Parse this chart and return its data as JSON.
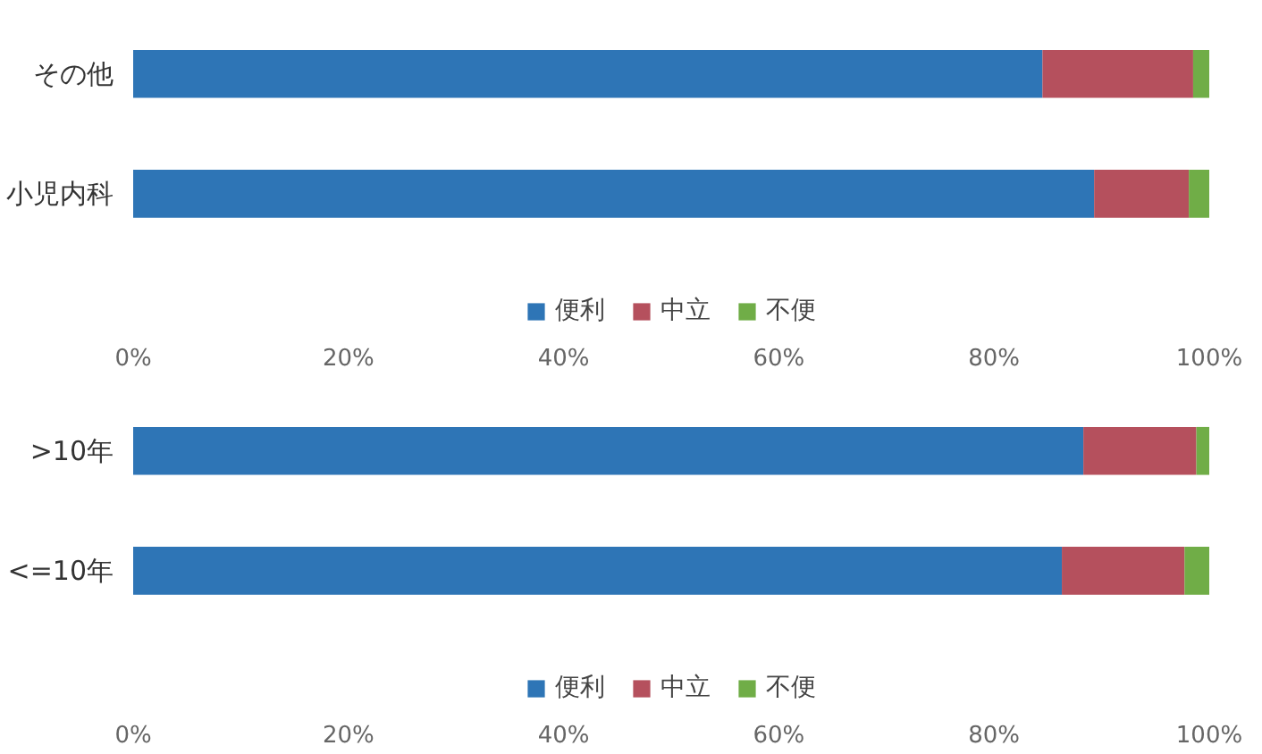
{
  "chart_data": [
    {
      "type": "bar",
      "orientation": "horizontal",
      "stacked": true,
      "categories": [
        "その他",
        "小児内科"
      ],
      "xlim": [
        0,
        100
      ],
      "xticks": [
        {
          "value": 0,
          "label": "0%"
        },
        {
          "value": 20,
          "label": "20%"
        },
        {
          "value": 40,
          "label": "40%"
        },
        {
          "value": 60,
          "label": "60%"
        },
        {
          "value": 80,
          "label": "80%"
        },
        {
          "value": 100,
          "label": "100%"
        }
      ],
      "grid": false,
      "legend": "bottom",
      "series": [
        {
          "name": "便利",
          "color": "#2e75b6",
          "values": [
            84.5,
            89.3
          ]
        },
        {
          "name": "中立",
          "color": "#b5505d",
          "values": [
            14.0,
            8.8
          ]
        },
        {
          "name": "不便",
          "color": "#70ad47",
          "values": [
            1.5,
            1.9
          ]
        }
      ]
    },
    {
      "type": "bar",
      "orientation": "horizontal",
      "stacked": true,
      "categories": [
        ">10年",
        "<=10年"
      ],
      "xlim": [
        0,
        100
      ],
      "xticks": [
        {
          "value": 0,
          "label": "0%"
        },
        {
          "value": 20,
          "label": "20%"
        },
        {
          "value": 40,
          "label": "40%"
        },
        {
          "value": 60,
          "label": "60%"
        },
        {
          "value": 80,
          "label": "80%"
        },
        {
          "value": 100,
          "label": "100%"
        }
      ],
      "grid": false,
      "legend": "bottom",
      "series": [
        {
          "name": "便利",
          "color": "#2e75b6",
          "values": [
            88.3,
            86.3
          ]
        },
        {
          "name": "中立",
          "color": "#b5505d",
          "values": [
            10.5,
            11.4
          ]
        },
        {
          "name": "不便",
          "color": "#70ad47",
          "values": [
            1.2,
            2.3
          ]
        }
      ]
    }
  ]
}
